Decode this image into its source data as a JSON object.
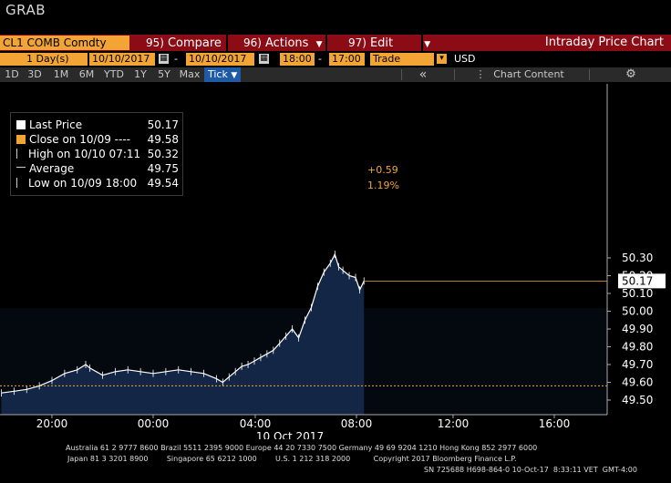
{
  "window": {
    "title": "GRAB"
  },
  "command_bar": {
    "ticker": "CL1 COMB Comdty",
    "compare": {
      "num": "95)",
      "label": "Compare"
    },
    "actions": {
      "num": "96)",
      "label": "Actions"
    },
    "edit": {
      "num": "97)",
      "label": "Edit"
    },
    "chart_title": "Intraday Price Chart"
  },
  "date_bar": {
    "period_count": "1",
    "period_unit": "Day(s)",
    "start_date": "10/10/2017",
    "dash": "-",
    "end_date": "10/10/2017",
    "start_time": "18:00",
    "end_time": "17:00",
    "field": "Trade",
    "currency": "USD"
  },
  "toolbar": {
    "ranges": [
      "1D",
      "3D",
      "1M",
      "6M",
      "YTD",
      "1Y",
      "5Y",
      "Max"
    ],
    "tick_label": "Tick",
    "collapse": "«",
    "chart_content": "Chart Content"
  },
  "legend": {
    "rows": [
      {
        "label": "Last Price",
        "value": "50.17"
      },
      {
        "label": "Close on 10/09 ----",
        "value": "49.58"
      },
      {
        "label": "High on 10/10 07:11",
        "value": "50.32"
      },
      {
        "label": "Average",
        "value": "49.75"
      },
      {
        "label": "Low on 10/09 18:00",
        "value": "49.54"
      }
    ]
  },
  "colors": {
    "accent": "#f2a535",
    "price_line": "#ffffff",
    "area": "#14284a",
    "command_bar": "#8b0c14"
  },
  "chart_data": {
    "type": "line",
    "title": "",
    "xlabel": "",
    "ylabel": "",
    "x_ticks": [
      "20:00",
      "00:00",
      "04:00",
      "08:00",
      "12:00",
      "16:00"
    ],
    "x_date_label": "10 Oct 2017",
    "y_ticks": [
      "49.50",
      "49.60",
      "49.70",
      "49.80",
      "49.90",
      "50.00",
      "50.10",
      "50.20",
      "50.30"
    ],
    "ylim": [
      49.47,
      50.36
    ],
    "grid": false,
    "legend_position": "top-left",
    "reference_lines": [
      {
        "name": "Close on 10/09",
        "value": 49.58
      }
    ],
    "last_price_label": "50.17",
    "change_abs": "+0.59",
    "change_pct": "1.19%",
    "series": [
      {
        "name": "Last Price",
        "x": [
          "18:00",
          "18:30",
          "19:00",
          "19:30",
          "20:00",
          "20:30",
          "21:00",
          "21:20",
          "21:30",
          "22:00",
          "22:30",
          "23:00",
          "23:30",
          "00:00",
          "00:30",
          "01:00",
          "01:30",
          "02:00",
          "02:30",
          "02:45",
          "03:00",
          "03:15",
          "03:30",
          "03:45",
          "04:00",
          "04:15",
          "04:30",
          "04:45",
          "05:00",
          "05:15",
          "05:30",
          "05:45",
          "06:00",
          "06:15",
          "06:30",
          "06:45",
          "07:00",
          "07:11",
          "07:20",
          "07:30",
          "07:45",
          "08:00",
          "08:10",
          "08:20"
        ],
        "values": [
          49.54,
          49.55,
          49.56,
          49.58,
          49.61,
          49.65,
          49.67,
          49.7,
          49.68,
          49.64,
          49.66,
          49.67,
          49.66,
          49.65,
          49.66,
          49.67,
          49.66,
          49.65,
          49.62,
          49.6,
          49.63,
          49.66,
          49.69,
          49.7,
          49.72,
          49.74,
          49.76,
          49.78,
          49.82,
          49.86,
          49.9,
          49.85,
          49.95,
          50.02,
          50.14,
          50.22,
          50.27,
          50.32,
          50.25,
          50.23,
          50.2,
          50.19,
          50.12,
          50.17
        ]
      }
    ]
  },
  "footer": {
    "line1": "Australia 61 2 9777 8600 Brazil 5511 2395 9000 Europe 44 20 7330 7500 Germany 49 69 9204 1210 Hong Kong 852 2977 6000",
    "line2": "Japan 81 3 3201 8900        Singapore 65 6212 1000        U.S. 1 212 318 2000          Copyright 2017 Bloomberg Finance L.P.",
    "line3": "SN 725688 H698-864-0 10-Oct-17  8:33:11 VET  GMT-4:00"
  }
}
